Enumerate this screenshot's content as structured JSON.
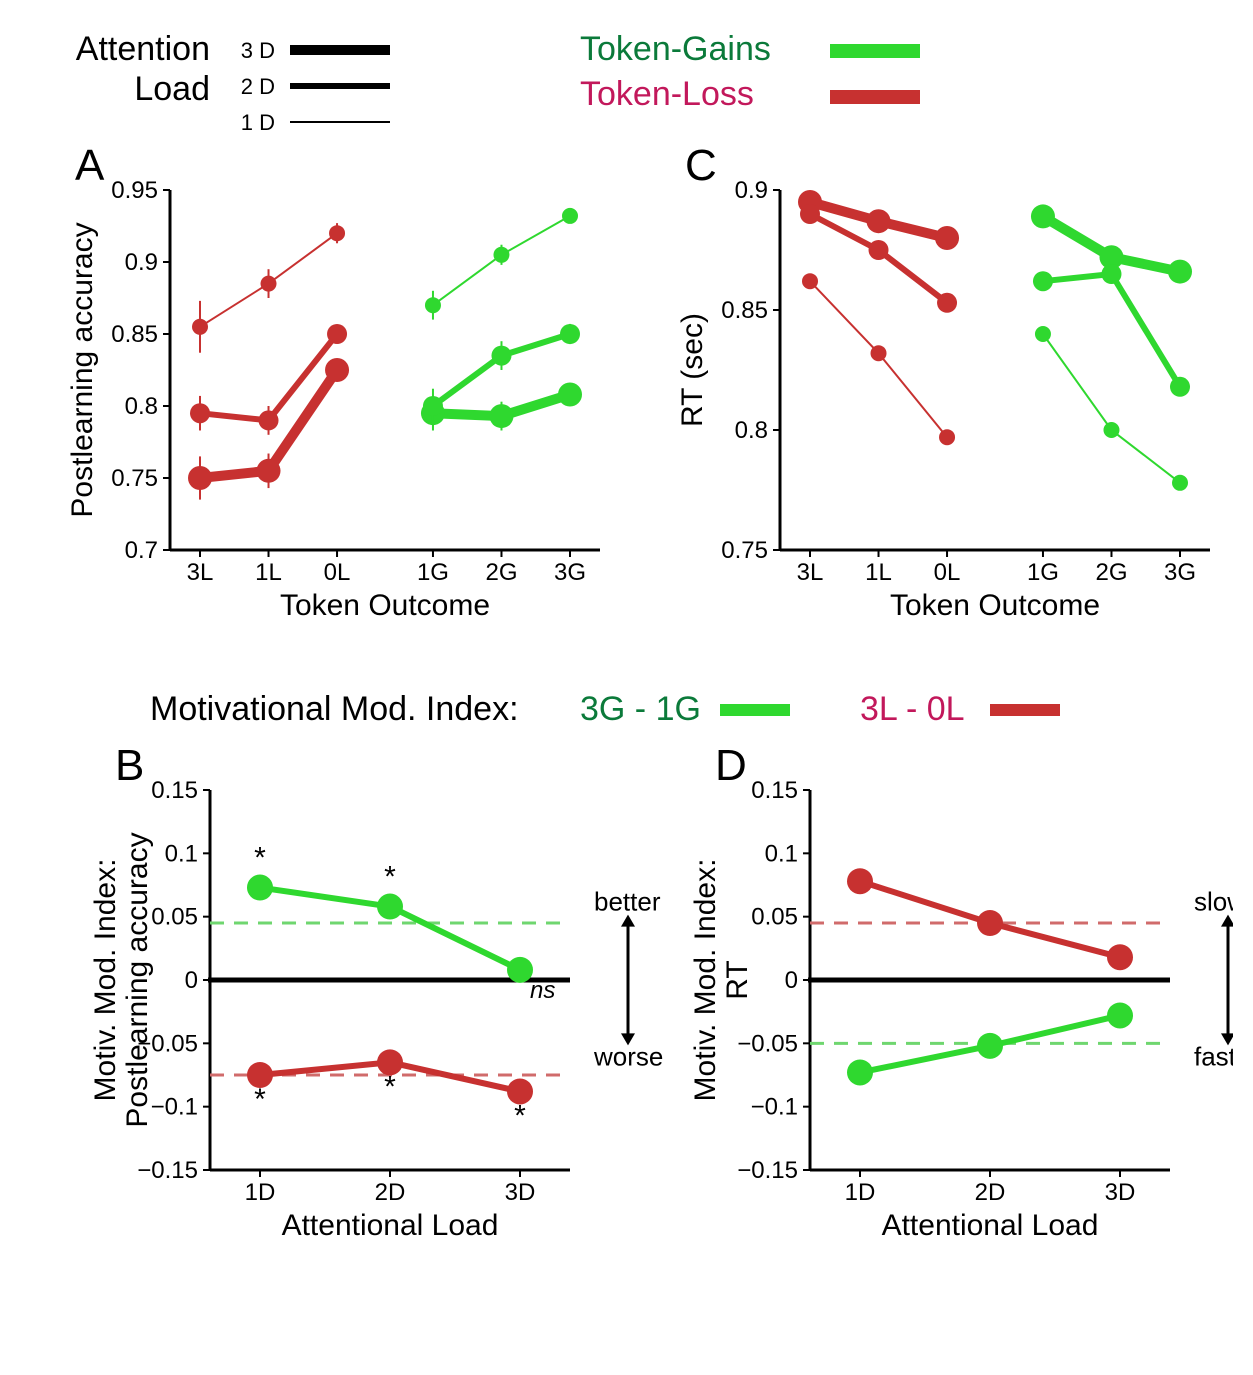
{
  "colors": {
    "gain_line": "#2fd82f",
    "gain_legend_text": "#0b7a3a",
    "loss_line": "#c73130",
    "loss_legend_text": "#c2185b",
    "axis": "#000000",
    "bg": "#ffffff",
    "zero_line": "#000000",
    "dashed_gain": "#6fd66f",
    "dashed_loss": "#d06b6b"
  },
  "top_legend": {
    "attention_load_label": "Attention\nLoad",
    "levels": [
      {
        "label": "3 D",
        "thickness": 10
      },
      {
        "label": "2 D",
        "thickness": 6
      },
      {
        "label": "1 D",
        "thickness": 2
      }
    ],
    "gain_label": "Token-Gains",
    "loss_label": "Token-Loss",
    "chip_thickness": 14
  },
  "mid_legend": {
    "title": "Motivational Mod. Index:",
    "gain_label": "3G - 1G",
    "loss_label": "3L - 0L",
    "chip_thickness": 12
  },
  "panels": {
    "A": {
      "letter": "A",
      "ylabel": "Postlearning accuracy",
      "xlabel": "Token Outcome",
      "ylim": [
        0.7,
        0.95
      ],
      "yticks": [
        0.7,
        0.75,
        0.8,
        0.85,
        0.9,
        0.95
      ],
      "x_categories_loss": [
        "3L",
        "1L",
        "0L"
      ],
      "x_categories_gain": [
        "1G",
        "2G",
        "3G"
      ],
      "x_positions_loss": [
        0,
        1,
        2
      ],
      "x_positions_gain": [
        3.4,
        4.4,
        5.4
      ],
      "series": {
        "loss_1D": {
          "color_key": "loss_line",
          "thickness": 2,
          "marker": 8,
          "y": [
            0.855,
            0.885,
            0.92
          ],
          "err": [
            0.018,
            0.01,
            0.007
          ]
        },
        "loss_2D": {
          "color_key": "loss_line",
          "thickness": 6,
          "marker": 10,
          "y": [
            0.795,
            0.79,
            0.85
          ],
          "err": [
            0.012,
            0.01,
            0.006
          ]
        },
        "loss_3D": {
          "color_key": "loss_line",
          "thickness": 10,
          "marker": 12,
          "y": [
            0.75,
            0.755,
            0.825
          ],
          "err": [
            0.015,
            0.012,
            0.008
          ]
        },
        "gain_1D": {
          "color_key": "gain_line",
          "thickness": 2,
          "marker": 8,
          "y": [
            0.87,
            0.905,
            0.932
          ],
          "err": [
            0.01,
            0.007,
            0.005
          ]
        },
        "gain_2D": {
          "color_key": "gain_line",
          "thickness": 6,
          "marker": 10,
          "y": [
            0.8,
            0.835,
            0.85
          ],
          "err": [
            0.012,
            0.01,
            0.007
          ]
        },
        "gain_3D": {
          "color_key": "gain_line",
          "thickness": 10,
          "marker": 12,
          "y": [
            0.795,
            0.793,
            0.808
          ],
          "err": [
            0.012,
            0.01,
            0.008
          ]
        }
      }
    },
    "C": {
      "letter": "C",
      "ylabel": "RT (sec)",
      "xlabel": "Token Outcome",
      "ylim": [
        0.75,
        0.9
      ],
      "yticks": [
        0.75,
        0.8,
        0.85,
        0.9
      ],
      "x_categories_loss": [
        "3L",
        "1L",
        "0L"
      ],
      "x_categories_gain": [
        "1G",
        "2G",
        "3G"
      ],
      "x_positions_loss": [
        0,
        1,
        2
      ],
      "x_positions_gain": [
        3.4,
        4.4,
        5.4
      ],
      "series": {
        "loss_1D": {
          "color_key": "loss_line",
          "thickness": 2,
          "marker": 8,
          "y": [
            0.862,
            0.832,
            0.797
          ],
          "err": [
            0,
            0,
            0
          ]
        },
        "loss_2D": {
          "color_key": "loss_line",
          "thickness": 6,
          "marker": 10,
          "y": [
            0.89,
            0.875,
            0.853
          ],
          "err": [
            0,
            0,
            0
          ]
        },
        "loss_3D": {
          "color_key": "loss_line",
          "thickness": 10,
          "marker": 12,
          "y": [
            0.895,
            0.887,
            0.88
          ],
          "err": [
            0,
            0,
            0
          ]
        },
        "gain_1D": {
          "color_key": "gain_line",
          "thickness": 2,
          "marker": 8,
          "y": [
            0.84,
            0.8,
            0.778
          ],
          "err": [
            0,
            0,
            0
          ]
        },
        "gain_2D": {
          "color_key": "gain_line",
          "thickness": 6,
          "marker": 10,
          "y": [
            0.862,
            0.865,
            0.818
          ],
          "err": [
            0,
            0,
            0
          ]
        },
        "gain_3D": {
          "color_key": "gain_line",
          "thickness": 10,
          "marker": 12,
          "y": [
            0.889,
            0.872,
            0.866
          ],
          "err": [
            0,
            0,
            0
          ]
        }
      }
    },
    "B": {
      "letter": "B",
      "ylabel": "Motiv. Mod. Index:\nPostlearning accuracy",
      "xlabel": "Attentional Load",
      "ylim": [
        -0.15,
        0.15
      ],
      "yticks": [
        -0.15,
        -0.1,
        -0.05,
        0,
        0.05,
        0.1,
        0.15
      ],
      "x_categories": [
        "1D",
        "2D",
        "3D"
      ],
      "x_positions": [
        0,
        1,
        2
      ],
      "dashed": {
        "gain_ref": 0.045,
        "loss_ref": -0.075
      },
      "series": {
        "gain": {
          "color_key": "gain_line",
          "thickness": 6,
          "marker": 13,
          "y": [
            0.073,
            0.058,
            0.008
          ],
          "sig": [
            "*",
            "*",
            "ns"
          ]
        },
        "loss": {
          "color_key": "loss_line",
          "thickness": 6,
          "marker": 13,
          "y": [
            -0.075,
            -0.065,
            -0.088
          ],
          "sig": [
            "*",
            "*",
            "*"
          ]
        }
      },
      "annotations": {
        "better": "better",
        "worse": "worse"
      }
    },
    "D": {
      "letter": "D",
      "ylabel": "Motiv. Mod. Index:\nRT",
      "xlabel": "Attentional Load",
      "ylim": [
        -0.15,
        0.15
      ],
      "yticks": [
        -0.15,
        -0.1,
        -0.05,
        0,
        0.05,
        0.1,
        0.15
      ],
      "x_categories": [
        "1D",
        "2D",
        "3D"
      ],
      "x_positions": [
        0,
        1,
        2
      ],
      "dashed": {
        "gain_ref": -0.05,
        "loss_ref": 0.045
      },
      "series": {
        "loss": {
          "color_key": "loss_line",
          "thickness": 6,
          "marker": 13,
          "y": [
            0.078,
            0.045,
            0.018
          ],
          "sig": []
        },
        "gain": {
          "color_key": "gain_line",
          "thickness": 6,
          "marker": 13,
          "y": [
            -0.073,
            -0.052,
            -0.028
          ],
          "sig": []
        }
      },
      "annotations": {
        "slower": "slower",
        "faster": "faster"
      }
    }
  }
}
